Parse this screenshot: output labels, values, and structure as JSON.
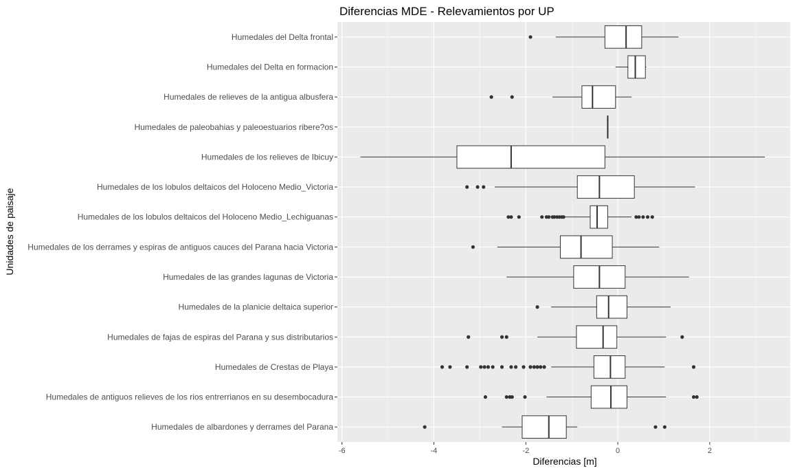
{
  "chart_data": {
    "type": "boxplot",
    "orientation": "horizontal",
    "title": "Diferencias MDE - Relevamientos por UP",
    "xlabel": "Diferencias [m]",
    "ylabel": "Unidades de paisaje",
    "xlim": [
      -6.1,
      3.75
    ],
    "xticks": [
      -6,
      -4,
      -2,
      0,
      2
    ],
    "grid": true,
    "legend": "none",
    "colors": {
      "panel": "#EBEBEB",
      "grid_major": "#FFFFFF",
      "box_fill": "#FFFFFF",
      "box_stroke": "#333333",
      "outlier": "#333333",
      "tick_text": "#4D4D4D",
      "title_text": "#000000"
    },
    "categories": [
      {
        "label": "Humedales del Delta frontal",
        "whisker_low": -1.35,
        "q1": -0.28,
        "median": 0.18,
        "q3": 0.52,
        "whisker_high": 1.32,
        "outliers": [
          -1.9
        ]
      },
      {
        "label": "Humedales del Delta en formacion",
        "whisker_low": -0.05,
        "q1": 0.22,
        "median": 0.38,
        "q3": 0.6,
        "whisker_high": 0.62,
        "outliers": []
      },
      {
        "label": "Humedales de relieves de la antigua albusfera",
        "whisker_low": -1.42,
        "q1": -0.78,
        "median": -0.55,
        "q3": -0.05,
        "whisker_high": 0.3,
        "outliers": [
          -2.75,
          -2.3
        ]
      },
      {
        "label": "Humedales de paleobahias y paleoestuarios ribere?os",
        "whisker_low": -0.22,
        "q1": -0.22,
        "median": -0.22,
        "q3": -0.22,
        "whisker_high": -0.22,
        "outliers": []
      },
      {
        "label": "Humedales de los relieves de Ibicuy",
        "whisker_low": -5.6,
        "q1": -3.5,
        "median": -2.32,
        "q3": -0.28,
        "whisker_high": 3.2,
        "outliers": []
      },
      {
        "label": "Humedales de los lobulos deltaicos del Holoceno Medio_Victoria",
        "whisker_low": -2.68,
        "q1": -0.88,
        "median": -0.4,
        "q3": 0.36,
        "whisker_high": 1.68,
        "outliers": [
          -3.28,
          -3.05,
          -2.92
        ]
      },
      {
        "label": "Humedales de los lobulos deltaicos del Holoceno Medio_Lechiguanas",
        "whisker_low": -1.15,
        "q1": -0.6,
        "median": -0.45,
        "q3": -0.22,
        "whisker_high": 0.3,
        "outliers": [
          -2.38,
          -2.32,
          -2.15,
          -1.65,
          -1.55,
          -1.5,
          -1.42,
          -1.38,
          -1.32,
          -1.27,
          -1.22,
          -1.18,
          0.4,
          0.46,
          0.55,
          0.65,
          0.75
        ]
      },
      {
        "label": "Humedales de los derrames y espiras de antiguos cauces del Parana hacia Victoria",
        "whisker_low": -2.62,
        "q1": -1.25,
        "median": -0.8,
        "q3": -0.12,
        "whisker_high": 0.9,
        "outliers": [
          -3.15
        ]
      },
      {
        "label": "Humedales de las grandes lagunas de Victoria",
        "whisker_low": -2.42,
        "q1": -0.96,
        "median": -0.4,
        "q3": 0.16,
        "whisker_high": 1.55,
        "outliers": []
      },
      {
        "label": "Humedales de la planicie deltaica superior",
        "whisker_low": -1.45,
        "q1": -0.46,
        "median": -0.2,
        "q3": 0.2,
        "whisker_high": 1.15,
        "outliers": [
          -1.75
        ]
      },
      {
        "label": "Humedales de fajas de espiras del Parana y sus distributarios",
        "whisker_low": -1.75,
        "q1": -0.9,
        "median": -0.32,
        "q3": -0.02,
        "whisker_high": 1.05,
        "outliers": [
          -3.25,
          -2.52,
          -2.42,
          1.4
        ]
      },
      {
        "label": "Humedales de Crestas de Playa",
        "whisker_low": -1.45,
        "q1": -0.52,
        "median": -0.16,
        "q3": 0.16,
        "whisker_high": 1.02,
        "outliers": [
          -3.82,
          -3.65,
          -3.28,
          -2.98,
          -2.9,
          -2.82,
          -2.72,
          -2.52,
          -2.32,
          -2.22,
          -2.05,
          -1.9,
          -1.82,
          -1.75,
          -1.68,
          -1.6,
          1.65
        ]
      },
      {
        "label": "Humedales de antiguos relieves de los rios entrerrianos en su desembocadura",
        "whisker_low": -1.55,
        "q1": -0.58,
        "median": -0.15,
        "q3": 0.2,
        "whisker_high": 1.05,
        "outliers": [
          -2.88,
          -2.42,
          -2.35,
          -2.3,
          -2.02,
          1.65,
          1.72
        ]
      },
      {
        "label": "Humedales de albardones y derrames del Parana",
        "whisker_low": -2.52,
        "q1": -2.08,
        "median": -1.5,
        "q3": -1.12,
        "whisker_high": -0.88,
        "outliers": [
          -4.2,
          0.82,
          1.02
        ]
      }
    ]
  }
}
